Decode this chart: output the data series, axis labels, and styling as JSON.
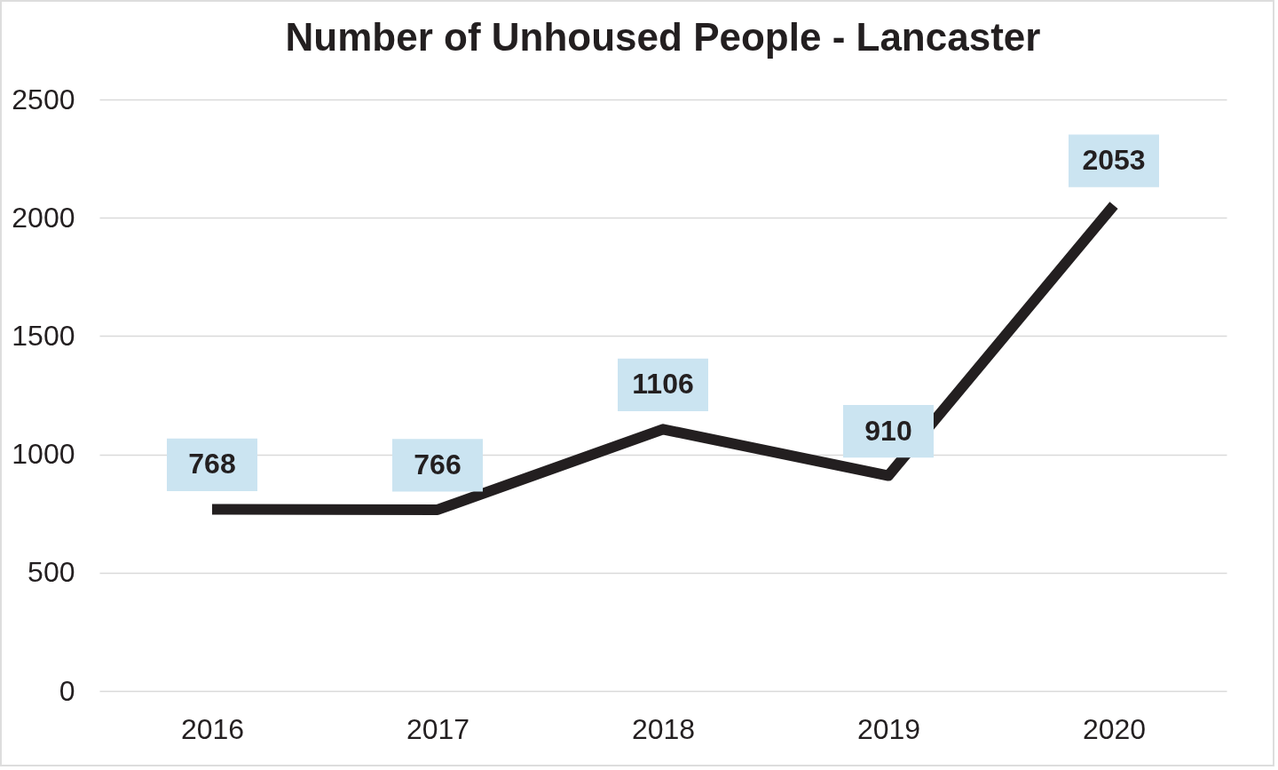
{
  "chart_data": {
    "type": "line",
    "title": "Number of Unhoused People - Lancaster",
    "categories": [
      "2016",
      "2017",
      "2018",
      "2019",
      "2020"
    ],
    "series": [
      {
        "color": "#231f20",
        "values": [
          768,
          766,
          1106,
          910,
          2053
        ]
      }
    ],
    "ylim": [
      0,
      2500
    ],
    "yticks": [
      0,
      500,
      1000,
      1500,
      2000,
      2500
    ],
    "grid": "y",
    "legend": false,
    "marker": "none",
    "line_style": "solid",
    "data_labels": true
  }
}
